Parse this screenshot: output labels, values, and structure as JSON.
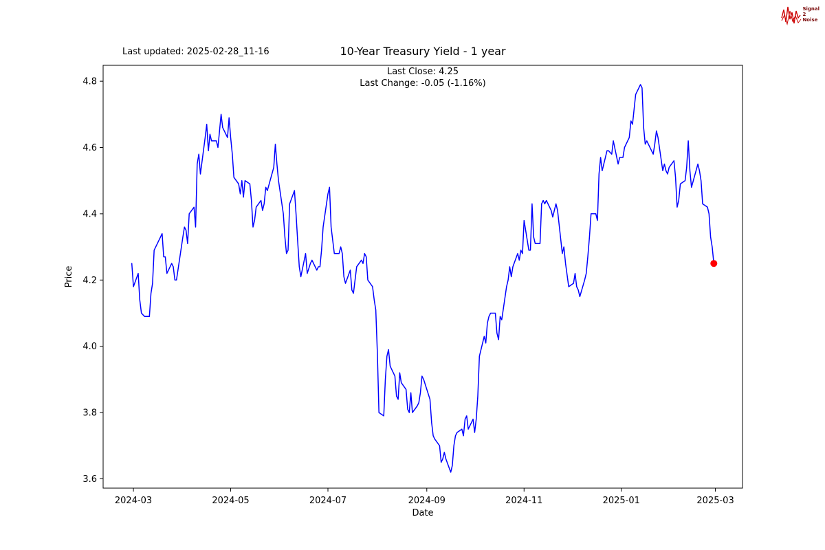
{
  "header": {
    "last_updated": "Last updated: 2025-02-28_11-16"
  },
  "logo": {
    "line1": "Signal",
    "line2": "2",
    "line3": "Noise",
    "wave_color": "#cc0000",
    "text_color": "#7a0a0a"
  },
  "chart_data": {
    "type": "line",
    "title": "10-Year Treasury Yield - 1 year",
    "subtitle": [
      "Last Close: 4.25",
      "Last Change: -0.05 (-1.16%)"
    ],
    "xlabel": "Date",
    "ylabel": "Price",
    "last_close": 4.25,
    "last_change": -0.05,
    "last_change_pct": "-1.16%",
    "background": "#ffffff",
    "axis_color": "#000000",
    "text_color": "#000000",
    "grid": false,
    "xlim": [
      "2024-02-11",
      "2025-03-18"
    ],
    "ylim": [
      3.572,
      4.848
    ],
    "yticks": [
      {
        "value": 3.6,
        "label": "3.6"
      },
      {
        "value": 3.8,
        "label": "3.8"
      },
      {
        "value": 4.0,
        "label": "4.0"
      },
      {
        "value": 4.2,
        "label": "4.2"
      },
      {
        "value": 4.4,
        "label": "4.4"
      },
      {
        "value": 4.6,
        "label": "4.6"
      },
      {
        "value": 4.8,
        "label": "4.8"
      }
    ],
    "xticks": [
      {
        "date": "2024-03-01",
        "label": "2024-03"
      },
      {
        "date": "2024-05-01",
        "label": "2024-05"
      },
      {
        "date": "2024-07-01",
        "label": "2024-07"
      },
      {
        "date": "2024-09-01",
        "label": "2024-09"
      },
      {
        "date": "2024-11-01",
        "label": "2024-11"
      },
      {
        "date": "2025-01-01",
        "label": "2025-01"
      },
      {
        "date": "2025-03-01",
        "label": "2025-03"
      }
    ],
    "marker": {
      "date": "2025-02-28",
      "value": 4.25,
      "color": "#ff0000"
    },
    "series": [
      {
        "name": "10-Year Treasury Yield",
        "color": "#0000ff",
        "points": [
          [
            "2024-02-29",
            4.25
          ],
          [
            "2024-03-01",
            4.18
          ],
          [
            "2024-03-04",
            4.22
          ],
          [
            "2024-03-05",
            4.14
          ],
          [
            "2024-03-06",
            4.1
          ],
          [
            "2024-03-08",
            4.09
          ],
          [
            "2024-03-11",
            4.09
          ],
          [
            "2024-03-12",
            4.16
          ],
          [
            "2024-03-13",
            4.19
          ],
          [
            "2024-03-14",
            4.29
          ],
          [
            "2024-03-18",
            4.33
          ],
          [
            "2024-03-19",
            4.34
          ],
          [
            "2024-03-20",
            4.27
          ],
          [
            "2024-03-21",
            4.27
          ],
          [
            "2024-03-22",
            4.22
          ],
          [
            "2024-03-25",
            4.25
          ],
          [
            "2024-03-26",
            4.24
          ],
          [
            "2024-03-27",
            4.2
          ],
          [
            "2024-03-28",
            4.2
          ],
          [
            "2024-04-01",
            4.33
          ],
          [
            "2024-04-02",
            4.36
          ],
          [
            "2024-04-03",
            4.35
          ],
          [
            "2024-04-04",
            4.31
          ],
          [
            "2024-04-05",
            4.4
          ],
          [
            "2024-04-08",
            4.42
          ],
          [
            "2024-04-09",
            4.36
          ],
          [
            "2024-04-10",
            4.55
          ],
          [
            "2024-04-11",
            4.58
          ],
          [
            "2024-04-12",
            4.52
          ],
          [
            "2024-04-15",
            4.63
          ],
          [
            "2024-04-16",
            4.67
          ],
          [
            "2024-04-17",
            4.59
          ],
          [
            "2024-04-18",
            4.64
          ],
          [
            "2024-04-19",
            4.62
          ],
          [
            "2024-04-22",
            4.62
          ],
          [
            "2024-04-23",
            4.6
          ],
          [
            "2024-04-24",
            4.65
          ],
          [
            "2024-04-25",
            4.7
          ],
          [
            "2024-04-26",
            4.66
          ],
          [
            "2024-04-29",
            4.63
          ],
          [
            "2024-04-30",
            4.69
          ],
          [
            "2024-05-01",
            4.63
          ],
          [
            "2024-05-02",
            4.58
          ],
          [
            "2024-05-03",
            4.51
          ],
          [
            "2024-05-06",
            4.49
          ],
          [
            "2024-05-07",
            4.46
          ],
          [
            "2024-05-08",
            4.5
          ],
          [
            "2024-05-09",
            4.45
          ],
          [
            "2024-05-10",
            4.5
          ],
          [
            "2024-05-13",
            4.49
          ],
          [
            "2024-05-14",
            4.44
          ],
          [
            "2024-05-15",
            4.36
          ],
          [
            "2024-05-16",
            4.38
          ],
          [
            "2024-05-17",
            4.42
          ],
          [
            "2024-05-20",
            4.44
          ],
          [
            "2024-05-21",
            4.41
          ],
          [
            "2024-05-22",
            4.43
          ],
          [
            "2024-05-23",
            4.48
          ],
          [
            "2024-05-24",
            4.47
          ],
          [
            "2024-05-28",
            4.54
          ],
          [
            "2024-05-29",
            4.61
          ],
          [
            "2024-05-30",
            4.55
          ],
          [
            "2024-05-31",
            4.5
          ],
          [
            "2024-06-03",
            4.4
          ],
          [
            "2024-06-04",
            4.33
          ],
          [
            "2024-06-05",
            4.28
          ],
          [
            "2024-06-06",
            4.29
          ],
          [
            "2024-06-07",
            4.43
          ],
          [
            "2024-06-10",
            4.47
          ],
          [
            "2024-06-11",
            4.4
          ],
          [
            "2024-06-12",
            4.32
          ],
          [
            "2024-06-13",
            4.24
          ],
          [
            "2024-06-14",
            4.21
          ],
          [
            "2024-06-17",
            4.28
          ],
          [
            "2024-06-18",
            4.22
          ],
          [
            "2024-06-20",
            4.25
          ],
          [
            "2024-06-21",
            4.26
          ],
          [
            "2024-06-24",
            4.23
          ],
          [
            "2024-06-25",
            4.24
          ],
          [
            "2024-06-26",
            4.24
          ],
          [
            "2024-06-27",
            4.29
          ],
          [
            "2024-06-28",
            4.36
          ],
          [
            "2024-07-01",
            4.46
          ],
          [
            "2024-07-02",
            4.48
          ],
          [
            "2024-07-03",
            4.36
          ],
          [
            "2024-07-05",
            4.28
          ],
          [
            "2024-07-08",
            4.28
          ],
          [
            "2024-07-09",
            4.3
          ],
          [
            "2024-07-10",
            4.28
          ],
          [
            "2024-07-11",
            4.21
          ],
          [
            "2024-07-12",
            4.19
          ],
          [
            "2024-07-15",
            4.23
          ],
          [
            "2024-07-16",
            4.17
          ],
          [
            "2024-07-17",
            4.16
          ],
          [
            "2024-07-19",
            4.24
          ],
          [
            "2024-07-22",
            4.26
          ],
          [
            "2024-07-23",
            4.25
          ],
          [
            "2024-07-24",
            4.28
          ],
          [
            "2024-07-25",
            4.27
          ],
          [
            "2024-07-26",
            4.2
          ],
          [
            "2024-07-29",
            4.18
          ],
          [
            "2024-07-30",
            4.14
          ],
          [
            "2024-07-31",
            4.11
          ],
          [
            "2024-08-01",
            3.98
          ],
          [
            "2024-08-02",
            3.8
          ],
          [
            "2024-08-05",
            3.79
          ],
          [
            "2024-08-06",
            3.9
          ],
          [
            "2024-08-07",
            3.97
          ],
          [
            "2024-08-08",
            3.99
          ],
          [
            "2024-08-09",
            3.94
          ],
          [
            "2024-08-12",
            3.91
          ],
          [
            "2024-08-13",
            3.85
          ],
          [
            "2024-08-14",
            3.84
          ],
          [
            "2024-08-15",
            3.92
          ],
          [
            "2024-08-16",
            3.89
          ],
          [
            "2024-08-19",
            3.87
          ],
          [
            "2024-08-20",
            3.81
          ],
          [
            "2024-08-21",
            3.8
          ],
          [
            "2024-08-22",
            3.86
          ],
          [
            "2024-08-23",
            3.8
          ],
          [
            "2024-08-26",
            3.82
          ],
          [
            "2024-08-27",
            3.83
          ],
          [
            "2024-08-28",
            3.86
          ],
          [
            "2024-08-29",
            3.91
          ],
          [
            "2024-08-30",
            3.9
          ],
          [
            "2024-09-03",
            3.84
          ],
          [
            "2024-09-04",
            3.77
          ],
          [
            "2024-09-05",
            3.73
          ],
          [
            "2024-09-06",
            3.72
          ],
          [
            "2024-09-09",
            3.7
          ],
          [
            "2024-09-10",
            3.65
          ],
          [
            "2024-09-11",
            3.66
          ],
          [
            "2024-09-12",
            3.68
          ],
          [
            "2024-09-13",
            3.66
          ],
          [
            "2024-09-16",
            3.62
          ],
          [
            "2024-09-17",
            3.64
          ],
          [
            "2024-09-18",
            3.7
          ],
          [
            "2024-09-19",
            3.73
          ],
          [
            "2024-09-20",
            3.74
          ],
          [
            "2024-09-23",
            3.75
          ],
          [
            "2024-09-24",
            3.73
          ],
          [
            "2024-09-25",
            3.78
          ],
          [
            "2024-09-26",
            3.79
          ],
          [
            "2024-09-27",
            3.75
          ],
          [
            "2024-09-30",
            3.78
          ],
          [
            "2024-10-01",
            3.74
          ],
          [
            "2024-10-02",
            3.78
          ],
          [
            "2024-10-03",
            3.85
          ],
          [
            "2024-10-04",
            3.97
          ],
          [
            "2024-10-07",
            4.03
          ],
          [
            "2024-10-08",
            4.01
          ],
          [
            "2024-10-09",
            4.07
          ],
          [
            "2024-10-10",
            4.09
          ],
          [
            "2024-10-11",
            4.1
          ],
          [
            "2024-10-14",
            4.1
          ],
          [
            "2024-10-15",
            4.04
          ],
          [
            "2024-10-16",
            4.02
          ],
          [
            "2024-10-17",
            4.09
          ],
          [
            "2024-10-18",
            4.08
          ],
          [
            "2024-10-21",
            4.18
          ],
          [
            "2024-10-22",
            4.2
          ],
          [
            "2024-10-23",
            4.24
          ],
          [
            "2024-10-24",
            4.21
          ],
          [
            "2024-10-25",
            4.24
          ],
          [
            "2024-10-28",
            4.28
          ],
          [
            "2024-10-29",
            4.26
          ],
          [
            "2024-10-30",
            4.29
          ],
          [
            "2024-10-31",
            4.28
          ],
          [
            "2024-11-01",
            4.38
          ],
          [
            "2024-11-04",
            4.29
          ],
          [
            "2024-11-05",
            4.29
          ],
          [
            "2024-11-06",
            4.43
          ],
          [
            "2024-11-07",
            4.33
          ],
          [
            "2024-11-08",
            4.31
          ],
          [
            "2024-11-11",
            4.31
          ],
          [
            "2024-11-12",
            4.43
          ],
          [
            "2024-11-13",
            4.44
          ],
          [
            "2024-11-14",
            4.43
          ],
          [
            "2024-11-15",
            4.44
          ],
          [
            "2024-11-18",
            4.41
          ],
          [
            "2024-11-19",
            4.39
          ],
          [
            "2024-11-20",
            4.41
          ],
          [
            "2024-11-21",
            4.43
          ],
          [
            "2024-11-22",
            4.41
          ],
          [
            "2024-11-25",
            4.28
          ],
          [
            "2024-11-26",
            4.3
          ],
          [
            "2024-11-27",
            4.25
          ],
          [
            "2024-11-29",
            4.18
          ],
          [
            "2024-12-02",
            4.19
          ],
          [
            "2024-12-03",
            4.22
          ],
          [
            "2024-12-04",
            4.18
          ],
          [
            "2024-12-05",
            4.17
          ],
          [
            "2024-12-06",
            4.15
          ],
          [
            "2024-12-09",
            4.2
          ],
          [
            "2024-12-10",
            4.22
          ],
          [
            "2024-12-11",
            4.27
          ],
          [
            "2024-12-12",
            4.33
          ],
          [
            "2024-12-13",
            4.4
          ],
          [
            "2024-12-16",
            4.4
          ],
          [
            "2024-12-17",
            4.38
          ],
          [
            "2024-12-18",
            4.52
          ],
          [
            "2024-12-19",
            4.57
          ],
          [
            "2024-12-20",
            4.53
          ],
          [
            "2024-12-23",
            4.59
          ],
          [
            "2024-12-24",
            4.59
          ],
          [
            "2024-12-26",
            4.58
          ],
          [
            "2024-12-27",
            4.62
          ],
          [
            "2024-12-30",
            4.55
          ],
          [
            "2024-12-31",
            4.57
          ],
          [
            "2025-01-02",
            4.57
          ],
          [
            "2025-01-03",
            4.6
          ],
          [
            "2025-01-06",
            4.63
          ],
          [
            "2025-01-07",
            4.68
          ],
          [
            "2025-01-08",
            4.67
          ],
          [
            "2025-01-10",
            4.76
          ],
          [
            "2025-01-13",
            4.79
          ],
          [
            "2025-01-14",
            4.78
          ],
          [
            "2025-01-15",
            4.66
          ],
          [
            "2025-01-16",
            4.61
          ],
          [
            "2025-01-17",
            4.62
          ],
          [
            "2025-01-21",
            4.58
          ],
          [
            "2025-01-22",
            4.61
          ],
          [
            "2025-01-23",
            4.65
          ],
          [
            "2025-01-24",
            4.63
          ],
          [
            "2025-01-27",
            4.53
          ],
          [
            "2025-01-28",
            4.55
          ],
          [
            "2025-01-29",
            4.53
          ],
          [
            "2025-01-30",
            4.52
          ],
          [
            "2025-01-31",
            4.54
          ],
          [
            "2025-02-03",
            4.56
          ],
          [
            "2025-02-04",
            4.51
          ],
          [
            "2025-02-05",
            4.42
          ],
          [
            "2025-02-06",
            4.44
          ],
          [
            "2025-02-07",
            4.49
          ],
          [
            "2025-02-10",
            4.5
          ],
          [
            "2025-02-11",
            4.54
          ],
          [
            "2025-02-12",
            4.62
          ],
          [
            "2025-02-13",
            4.53
          ],
          [
            "2025-02-14",
            4.48
          ],
          [
            "2025-02-18",
            4.55
          ],
          [
            "2025-02-19",
            4.53
          ],
          [
            "2025-02-20",
            4.5
          ],
          [
            "2025-02-21",
            4.43
          ],
          [
            "2025-02-24",
            4.42
          ],
          [
            "2025-02-25",
            4.4
          ],
          [
            "2025-02-26",
            4.33
          ],
          [
            "2025-02-27",
            4.3
          ],
          [
            "2025-02-28",
            4.25
          ]
        ]
      }
    ]
  }
}
